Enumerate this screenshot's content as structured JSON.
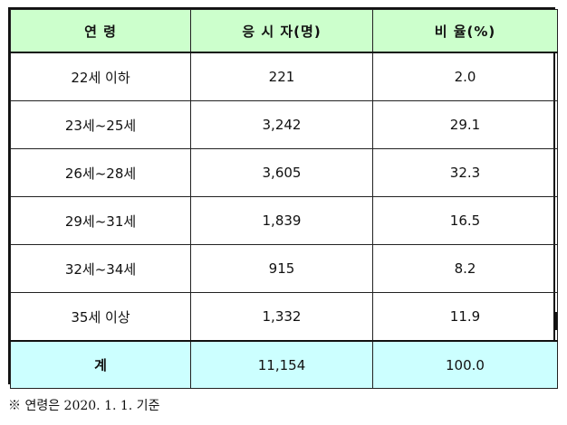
{
  "table": {
    "headers": [
      "연 령",
      "응 시 자(명)",
      "비 율(%)"
    ],
    "rows": [
      [
        "22세 이하",
        "221",
        "2.0"
      ],
      [
        "23세~25세",
        "3,242",
        "29.1"
      ],
      [
        "26세~28세",
        "3,605",
        "32.3"
      ],
      [
        "29세~31세",
        "1,839",
        "16.5"
      ],
      [
        "32세~34세",
        "915",
        "8.2"
      ],
      [
        "35세 이상",
        "1,332",
        "11.9"
      ]
    ],
    "total": [
      "계",
      "11,154",
      "100.0"
    ]
  },
  "note": "※ 연령은 2020. 1. 1. 기준",
  "colors": {
    "header_bg": "#ccffcc",
    "total_bg": "#ccffff"
  }
}
